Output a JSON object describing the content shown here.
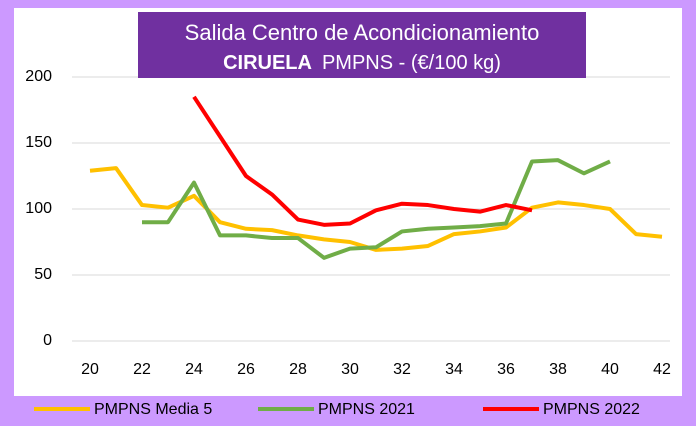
{
  "chart_data": {
    "type": "line",
    "title": "Salida Centro de Acondicionamiento",
    "subtitle_bold": "CIRUELA",
    "subtitle": "PMPNS - (€/100 kg)",
    "x": [
      20,
      21,
      22,
      23,
      24,
      25,
      26,
      27,
      28,
      29,
      30,
      31,
      32,
      33,
      34,
      35,
      36,
      37,
      38,
      39,
      40,
      41,
      42
    ],
    "series": [
      {
        "name": "PMPNS Media 5",
        "color": "#ffc000",
        "values": [
          129,
          131,
          103,
          101,
          110,
          90,
          85,
          84,
          80,
          77,
          75,
          69,
          70,
          72,
          81,
          83,
          86,
          101,
          105,
          103,
          100,
          81,
          79
        ]
      },
      {
        "name": "PMPNS 2021",
        "color": "#70ad47",
        "values": [
          null,
          null,
          90,
          90,
          120,
          80,
          80,
          78,
          78,
          63,
          70,
          71,
          83,
          85,
          86,
          87,
          89,
          136,
          137,
          127,
          136,
          null,
          null
        ]
      },
      {
        "name": "PMPNS 2022",
        "color": "#ff0000",
        "values": [
          null,
          null,
          null,
          null,
          185,
          155,
          125,
          111,
          92,
          88,
          89,
          99,
          104,
          103,
          100,
          98,
          103,
          99,
          null,
          null,
          null,
          null,
          null
        ]
      }
    ],
    "xlim": [
      20,
      42
    ],
    "xticks": [
      20,
      22,
      24,
      26,
      28,
      30,
      32,
      34,
      36,
      38,
      40,
      42
    ],
    "ylim": [
      0,
      200
    ],
    "yticks": [
      0,
      50,
      100,
      150,
      200
    ],
    "grid": true,
    "legend": "bottom"
  }
}
